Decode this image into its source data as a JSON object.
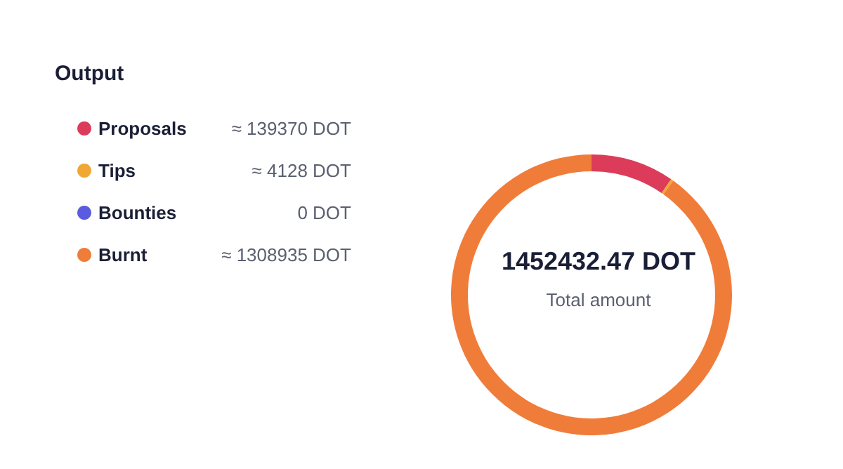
{
  "chart_data": {
    "type": "donut",
    "title": "Output",
    "categories": [
      "Proposals",
      "Tips",
      "Bounties",
      "Burnt"
    ],
    "values": [
      139370,
      4128,
      0,
      1308935
    ],
    "value_labels": [
      "≈ 139370 DOT",
      "≈ 4128 DOT",
      "0 DOT",
      "≈ 1308935 DOT"
    ],
    "colors": [
      "#dc3c5a",
      "#f0a832",
      "#5b5be0",
      "#f07c3a"
    ],
    "annotations": [
      "1452432.47 DOT",
      "Total amount"
    ],
    "legend": "left"
  }
}
